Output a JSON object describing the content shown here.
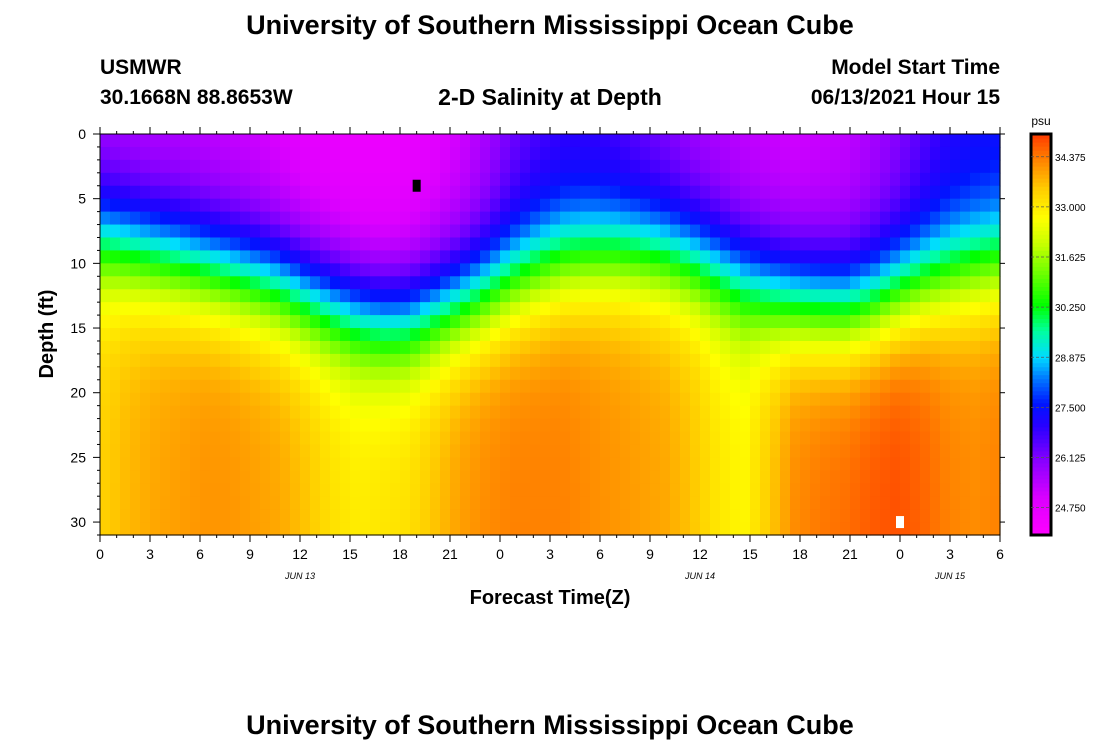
{
  "header": {
    "title": "University of Southern Mississippi Ocean Cube",
    "station": "USMWR",
    "coords": "30.1668N  88.8653W",
    "subtitle": "2-D Salinity at Depth",
    "model_label": "Model Start Time",
    "model_time": "06/13/2021 Hour 15",
    "footer_title": "University of Southern Mississippi Ocean Cube"
  },
  "chart_data": {
    "type": "heatmap",
    "title": "2-D Salinity at Depth",
    "xlabel": "Forecast Time(Z)",
    "ylabel": "Depth (ft)",
    "x_range_hours": [
      0,
      54
    ],
    "y_range_ft": [
      0,
      31
    ],
    "x_tick_hours": [
      0,
      3,
      6,
      9,
      12,
      15,
      18,
      21,
      24,
      27,
      30,
      33,
      36,
      39,
      42,
      45,
      48,
      51,
      54
    ],
    "x_tick_labels": [
      "0",
      "3",
      "6",
      "9",
      "12",
      "15",
      "18",
      "21",
      "0",
      "3",
      "6",
      "9",
      "12",
      "15",
      "18",
      "21",
      "0",
      "3",
      "6"
    ],
    "date_labels": [
      {
        "hour": 12,
        "label": "JUN 13"
      },
      {
        "hour": 36,
        "label": "JUN 14"
      },
      {
        "hour": 51,
        "label": "JUN 15"
      }
    ],
    "y_ticks": [
      0,
      5,
      10,
      15,
      20,
      25,
      30
    ],
    "colorbar": {
      "unit": "psu",
      "min": 24.0,
      "max": 35.0,
      "tick_values": [
        34.375,
        33.0,
        31.625,
        30.25,
        28.875,
        27.5,
        26.125,
        24.75
      ],
      "tick_labels": [
        "34.375",
        "33.000",
        "31.625",
        "30.250",
        "28.875",
        "27.500",
        "26.125",
        "24.750"
      ]
    },
    "surface_salinity_psu": [
      25.6,
      25.5,
      25.4,
      25.4,
      25.3,
      25.2,
      25.1,
      24.9,
      24.7,
      24.6,
      24.5,
      24.5,
      24.6,
      24.8,
      25.1,
      25.6,
      26.2,
      26.6,
      26.8,
      26.8,
      26.6,
      26.3,
      26.0,
      25.7,
      25.5,
      25.3,
      25.2,
      25.1,
      25.2,
      25.3,
      25.6,
      26.0,
      26.5,
      27.0,
      27.2,
      27.3
    ],
    "halocline_depth_ft": [
      8.0,
      8.5,
      9.0,
      9.5,
      10.0,
      10.5,
      11.0,
      11.5,
      12.3,
      13.0,
      13.7,
      14.2,
      14.2,
      13.5,
      12.8,
      12.0,
      11.0,
      10.2,
      9.5,
      9.2,
      9.0,
      9.0,
      9.2,
      9.6,
      10.3,
      11.1,
      12.0,
      12.6,
      13.0,
      13.2,
      12.8,
      12.0,
      11.2,
      10.6,
      10.1,
      9.8
    ],
    "bottom_salinity_psu": [
      33.4,
      33.7,
      33.9,
      34.0,
      34.1,
      34.1,
      34.0,
      33.9,
      33.6,
      33.2,
      33.0,
      33.1,
      33.2,
      33.6,
      34.0,
      34.2,
      34.3,
      34.3,
      34.3,
      34.2,
      34.1,
      34.0,
      33.9,
      33.6,
      33.1,
      32.8,
      33.5,
      34.2,
      34.4,
      34.5,
      34.7,
      34.8,
      34.6,
      34.3,
      34.2,
      34.3
    ],
    "markers": [
      {
        "hour": 19,
        "depth_ft": 4,
        "color": "#000000"
      },
      {
        "hour": 48,
        "depth_ft": 30,
        "color": "#ffffff"
      }
    ]
  }
}
